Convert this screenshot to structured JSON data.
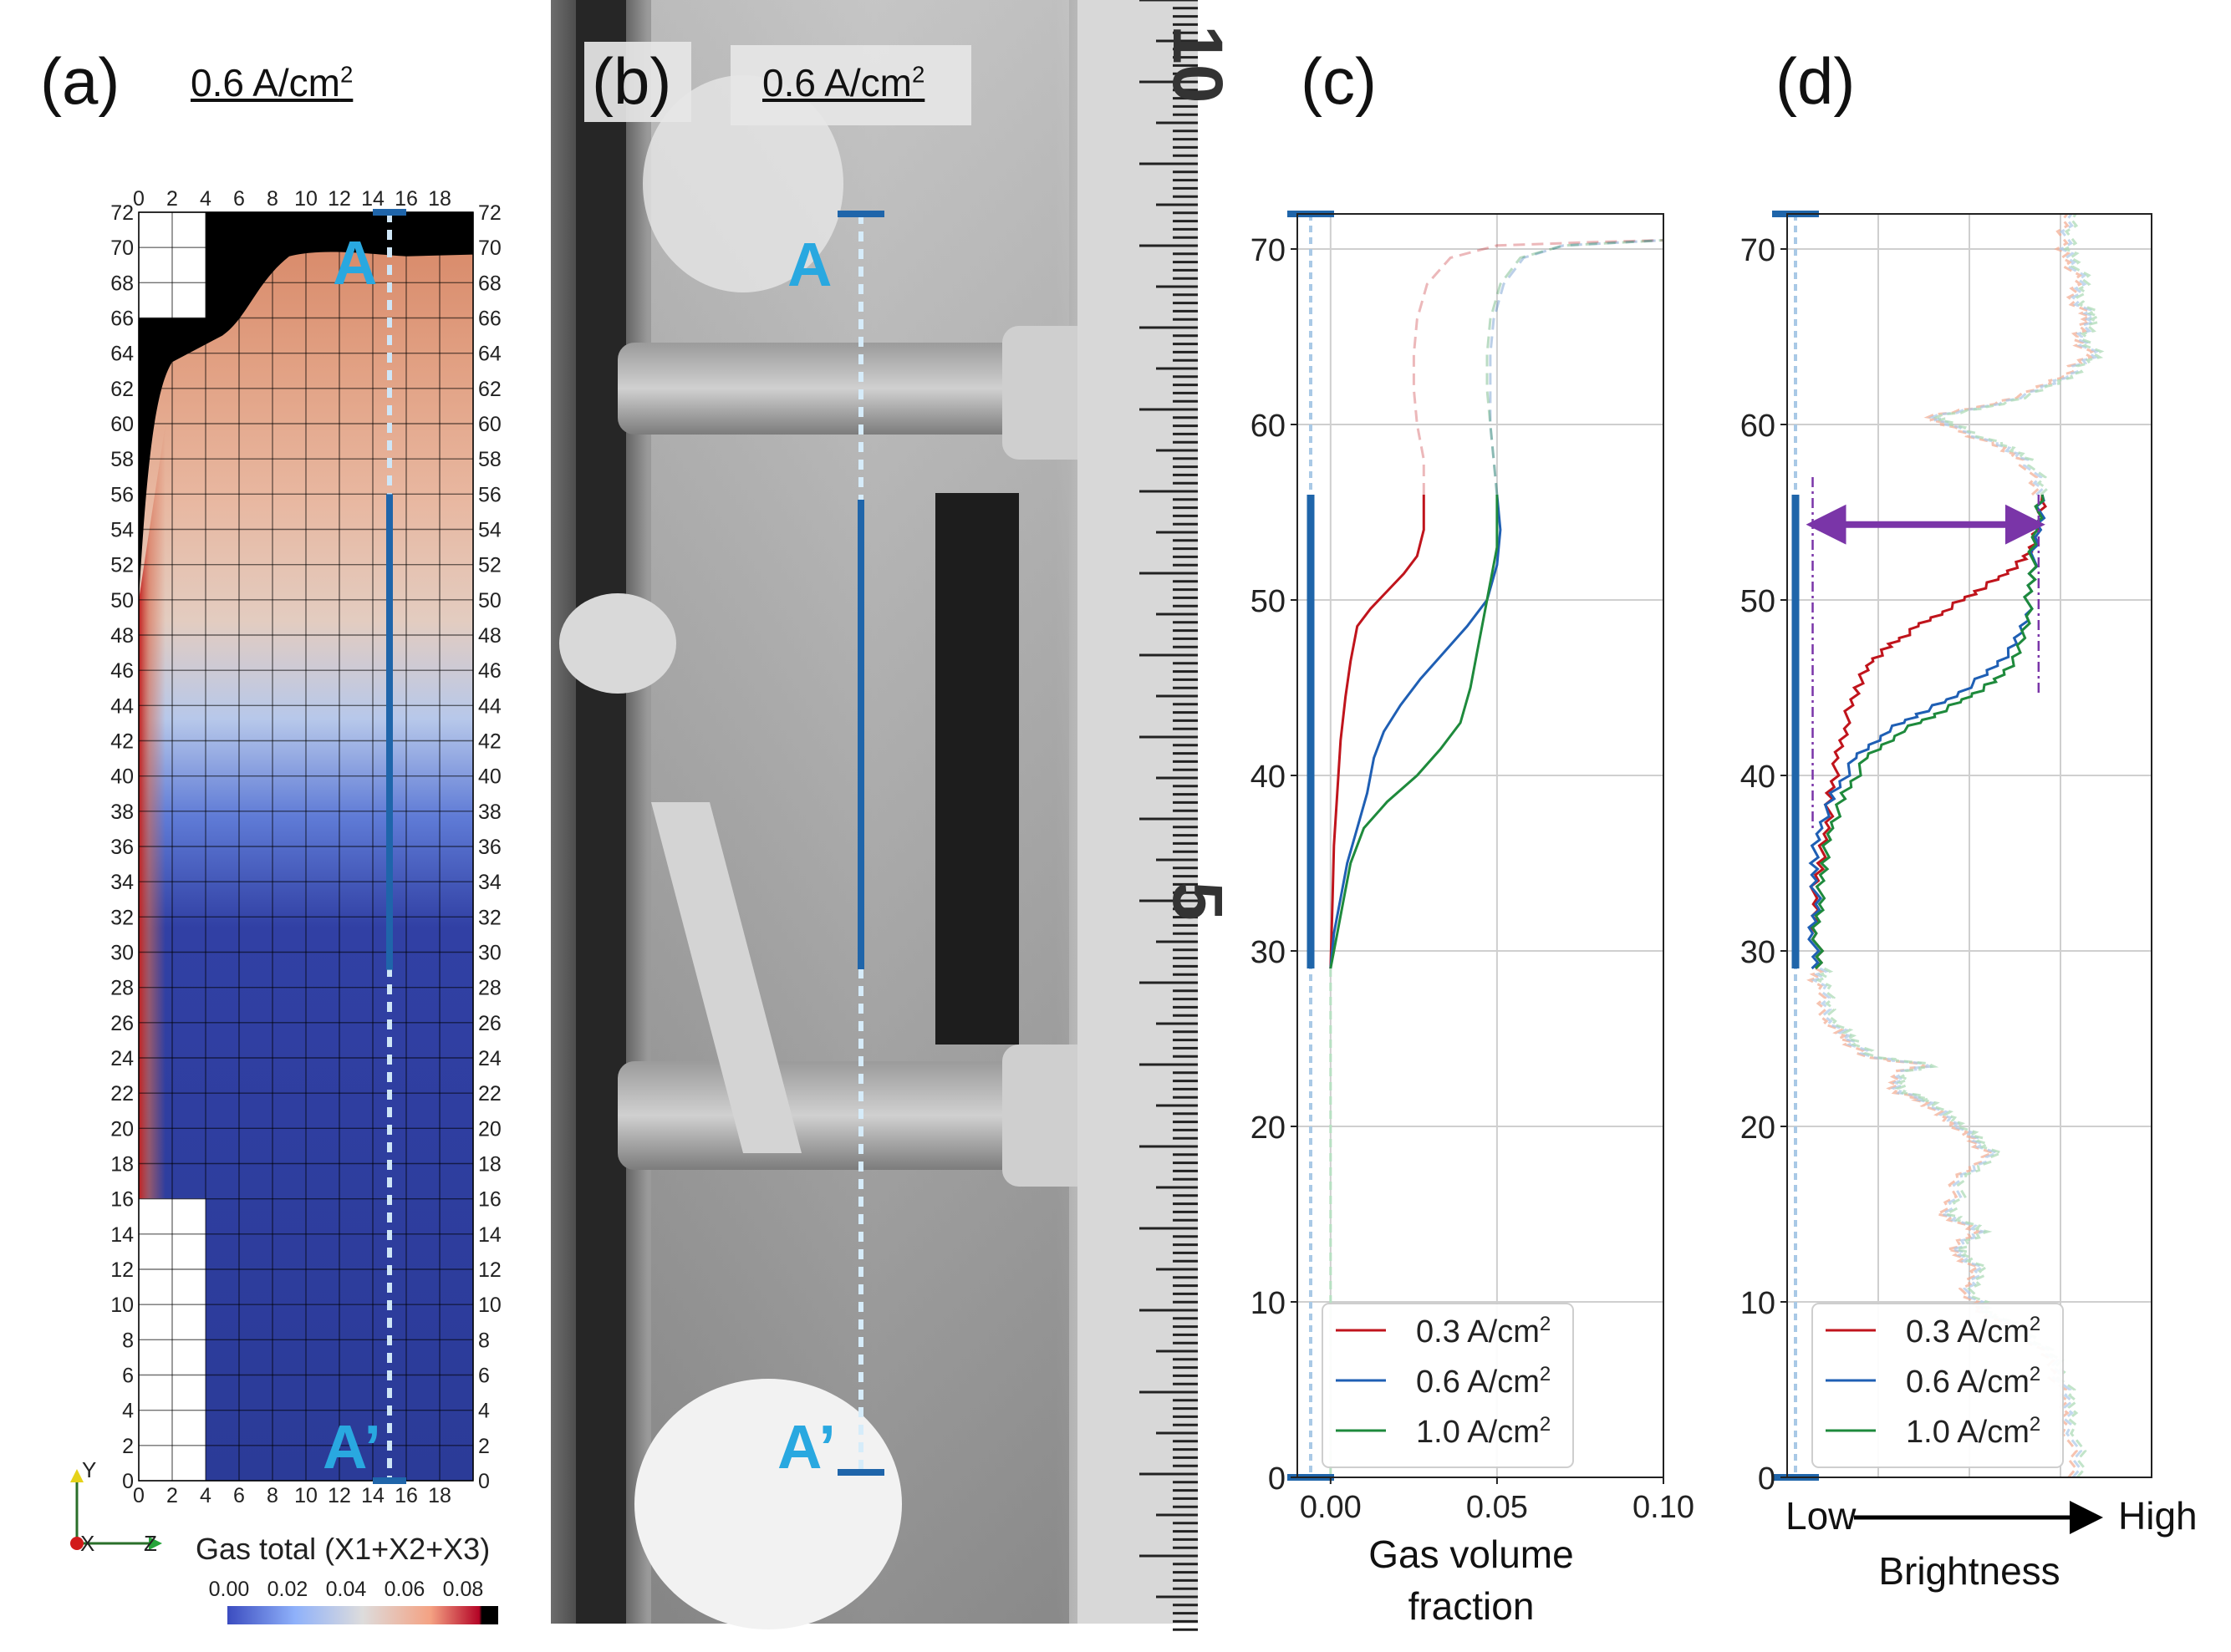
{
  "panel_a": {
    "label": "(a)",
    "current": "0.6 A/cm",
    "current_sup": "2",
    "y_ticks": [
      0,
      2,
      4,
      6,
      8,
      10,
      12,
      14,
      16,
      18,
      20,
      22,
      24,
      26,
      28,
      30,
      32,
      34,
      36,
      38,
      40,
      42,
      44,
      46,
      48,
      50,
      52,
      54,
      56,
      58,
      60,
      62,
      64,
      66,
      68,
      70,
      72
    ],
    "x_ticks": [
      0,
      2,
      4,
      6,
      8,
      10,
      12,
      14,
      16,
      18
    ],
    "marker_top": "A",
    "marker_bottom": "A’",
    "axes_triad": {
      "y": "Y",
      "x": "X",
      "z": "Z"
    },
    "colorbar": {
      "title": "Gas total (X1+X2+X3)",
      "ticks": [
        "0.00",
        "0.02",
        "0.04",
        "0.06",
        "0.08"
      ],
      "colors": [
        "#3b4cc0",
        "#aac7fd",
        "#dddddd",
        "#f7b194",
        "#b40426",
        "#000000"
      ]
    }
  },
  "panel_b": {
    "label": "(b)",
    "current": "0.6 A/cm",
    "current_sup": "2",
    "marker_top": "A",
    "marker_bottom": "A’",
    "ruler_numbers": [
      "10",
      "5"
    ]
  },
  "panel_c": {
    "label": "(c)",
    "xlabel_line1": "Gas volume",
    "xlabel_line2": "fraction",
    "x_tick_labels": [
      "0.00",
      "0.05",
      "0.10"
    ],
    "y_tick_labels": [
      "0",
      "10",
      "20",
      "30",
      "40",
      "50",
      "60",
      "70"
    ]
  },
  "panel_d": {
    "label": "(d)",
    "xlabel": "Brightness",
    "x_low": "Low",
    "x_high": "High",
    "y_tick_labels": [
      "0",
      "10",
      "20",
      "30",
      "40",
      "50",
      "60",
      "70"
    ]
  },
  "legend": {
    "items": [
      {
        "text": "0.3 A/cm",
        "sup": "2",
        "color": "#c0141c"
      },
      {
        "text": "0.6 A/cm",
        "sup": "2",
        "color": "#1f5fb4"
      },
      {
        "text": "1.0 A/cm",
        "sup": "2",
        "color": "#1e8a3c"
      }
    ]
  },
  "colors": {
    "accent_blue": "#1f65aa",
    "marker_cyan": "#29a8e0",
    "arrow_purple": "#7a35a8"
  },
  "chart_data": [
    {
      "type": "line",
      "panel": "c",
      "xlabel": "Gas volume fraction",
      "ylabel": "",
      "xlim": [
        -0.01,
        0.1
      ],
      "ylim": [
        0,
        72
      ],
      "grid": true,
      "legend_position": "bottom-right",
      "series": [
        {
          "name": "0.3 A/cm2",
          "color": "#c0141c",
          "solid": [
            [
              0.0,
              29
            ],
            [
              0.0003,
              31
            ],
            [
              0.0006,
              33
            ],
            [
              0.001,
              36
            ],
            [
              0.002,
              39
            ],
            [
              0.003,
              42
            ],
            [
              0.0045,
              44.5
            ],
            [
              0.006,
              46.5
            ],
            [
              0.008,
              48.5
            ],
            [
              0.012,
              49.5
            ],
            [
              0.017,
              50.5
            ],
            [
              0.022,
              51.5
            ],
            [
              0.026,
              52.5
            ],
            [
              0.028,
              54
            ],
            [
              0.028,
              56
            ]
          ],
          "dashed": [
            [
              0.028,
              56
            ],
            [
              0.028,
              58
            ],
            [
              0.026,
              60
            ],
            [
              0.025,
              62
            ],
            [
              0.025,
              64
            ],
            [
              0.026,
              66
            ],
            [
              0.029,
              68
            ],
            [
              0.036,
              69.5
            ],
            [
              0.05,
              70.2
            ],
            [
              0.08,
              70.4
            ],
            [
              0.1,
              70.5
            ]
          ]
        },
        {
          "name": "0.6 A/cm2",
          "color": "#1f5fb4",
          "solid": [
            [
              0.0,
              29
            ],
            [
              0.001,
              31
            ],
            [
              0.003,
              33
            ],
            [
              0.005,
              35
            ],
            [
              0.008,
              37
            ],
            [
              0.011,
              39
            ],
            [
              0.013,
              41
            ],
            [
              0.016,
              42.5
            ],
            [
              0.021,
              44
            ],
            [
              0.027,
              45.5
            ],
            [
              0.034,
              47
            ],
            [
              0.041,
              48.5
            ],
            [
              0.047,
              50
            ],
            [
              0.05,
              52
            ],
            [
              0.051,
              54
            ],
            [
              0.05,
              56
            ]
          ],
          "dashed": [
            [
              0.05,
              56
            ],
            [
              0.049,
              58
            ],
            [
              0.048,
              60
            ],
            [
              0.048,
              62
            ],
            [
              0.048,
              64
            ],
            [
              0.049,
              66
            ],
            [
              0.052,
              68
            ],
            [
              0.058,
              69.5
            ],
            [
              0.07,
              70.2
            ],
            [
              0.1,
              70.5
            ]
          ]
        },
        {
          "name": "1.0 A/cm2",
          "color": "#1e8a3c",
          "solid": [
            [
              0.0,
              29
            ],
            [
              0.002,
              31
            ],
            [
              0.004,
              33
            ],
            [
              0.006,
              35
            ],
            [
              0.01,
              37
            ],
            [
              0.017,
              38.5
            ],
            [
              0.026,
              40
            ],
            [
              0.033,
              41.5
            ],
            [
              0.039,
              43
            ],
            [
              0.042,
              45
            ],
            [
              0.044,
              47
            ],
            [
              0.046,
              49
            ],
            [
              0.048,
              51
            ],
            [
              0.05,
              53
            ],
            [
              0.05,
              56
            ]
          ],
          "dashed": [
            [
              0.05,
              56
            ],
            [
              0.049,
              58
            ],
            [
              0.048,
              60
            ],
            [
              0.047,
              62
            ],
            [
              0.047,
              64
            ],
            [
              0.048,
              66
            ],
            [
              0.051,
              68
            ],
            [
              0.057,
              69.5
            ],
            [
              0.07,
              70.2
            ],
            [
              0.1,
              70.5
            ]
          ]
        }
      ]
    },
    {
      "type": "line",
      "panel": "d",
      "xlabel": "Brightness",
      "ylabel": "",
      "xlim": [
        0,
        1
      ],
      "ylim": [
        0,
        72
      ],
      "grid": true,
      "legend_position": "bottom-left",
      "series": [
        {
          "name": "0.3 A/cm2",
          "color": "#c0141c",
          "solid": [
            [
              0.09,
              29
            ],
            [
              0.08,
              31
            ],
            [
              0.07,
              33
            ],
            [
              0.09,
              35
            ],
            [
              0.11,
              37
            ],
            [
              0.12,
              39
            ],
            [
              0.14,
              41
            ],
            [
              0.16,
              43
            ],
            [
              0.19,
              45
            ],
            [
              0.23,
              46.5
            ],
            [
              0.29,
              47.5
            ],
            [
              0.36,
              48.5
            ],
            [
              0.44,
              49.5
            ],
            [
              0.52,
              50.5
            ],
            [
              0.6,
              51.5
            ],
            [
              0.66,
              52.5
            ],
            [
              0.69,
              54
            ],
            [
              0.7,
              56
            ]
          ]
        },
        {
          "name": "0.6 A/cm2",
          "color": "#1f5fb4",
          "solid": [
            [
              0.08,
              29
            ],
            [
              0.07,
              31
            ],
            [
              0.08,
              33
            ],
            [
              0.07,
              35
            ],
            [
              0.09,
              37
            ],
            [
              0.13,
              39
            ],
            [
              0.19,
              41
            ],
            [
              0.27,
              42.5
            ],
            [
              0.36,
              43.5
            ],
            [
              0.46,
              44.5
            ],
            [
              0.56,
              46
            ],
            [
              0.63,
              47.5
            ],
            [
              0.66,
              49.5
            ],
            [
              0.67,
              51.5
            ],
            [
              0.69,
              54
            ],
            [
              0.7,
              56
            ]
          ]
        },
        {
          "name": "1.0 A/cm2",
          "color": "#1e8a3c",
          "solid": [
            [
              0.09,
              29
            ],
            [
              0.08,
              31
            ],
            [
              0.09,
              33
            ],
            [
              0.1,
              35
            ],
            [
              0.12,
              37
            ],
            [
              0.16,
              39
            ],
            [
              0.22,
              41
            ],
            [
              0.31,
              42.5
            ],
            [
              0.41,
              43.5
            ],
            [
              0.5,
              44.5
            ],
            [
              0.58,
              45.5
            ],
            [
              0.64,
              47
            ],
            [
              0.66,
              49.5
            ],
            [
              0.67,
              51.5
            ],
            [
              0.68,
              54
            ],
            [
              0.7,
              56
            ]
          ]
        }
      ],
      "background_profile": [
        [
          0.8,
          0
        ],
        [
          0.78,
          3
        ],
        [
          0.76,
          5
        ],
        [
          0.72,
          7
        ],
        [
          0.63,
          8.5
        ],
        [
          0.54,
          9.5
        ],
        [
          0.5,
          10.5
        ],
        [
          0.52,
          12
        ],
        [
          0.46,
          13
        ],
        [
          0.53,
          14
        ],
        [
          0.44,
          15
        ],
        [
          0.48,
          17
        ],
        [
          0.56,
          18.5
        ],
        [
          0.5,
          19.5
        ],
        [
          0.44,
          20.5
        ],
        [
          0.38,
          21.5
        ],
        [
          0.31,
          22
        ],
        [
          0.3,
          23
        ],
        [
          0.39,
          23.5
        ],
        [
          0.22,
          24
        ],
        [
          0.17,
          25
        ],
        [
          0.12,
          26
        ],
        [
          0.09,
          28
        ],
        [
          0.09,
          29
        ]
      ],
      "background_profile_top": [
        [
          0.7,
          56
        ],
        [
          0.66,
          58
        ],
        [
          0.56,
          59
        ],
        [
          0.44,
          60
        ],
        [
          0.4,
          60.5
        ],
        [
          0.55,
          61
        ],
        [
          0.7,
          62
        ],
        [
          0.78,
          63
        ],
        [
          0.84,
          64
        ],
        [
          0.8,
          65
        ],
        [
          0.84,
          66
        ],
        [
          0.8,
          67
        ],
        [
          0.8,
          68.5
        ],
        [
          0.76,
          70
        ],
        [
          0.78,
          72
        ]
      ],
      "annotation_arrow": {
        "from_x": 0.07,
        "to_x": 0.69,
        "y": 54.3,
        "color": "#7a35a8"
      }
    }
  ]
}
